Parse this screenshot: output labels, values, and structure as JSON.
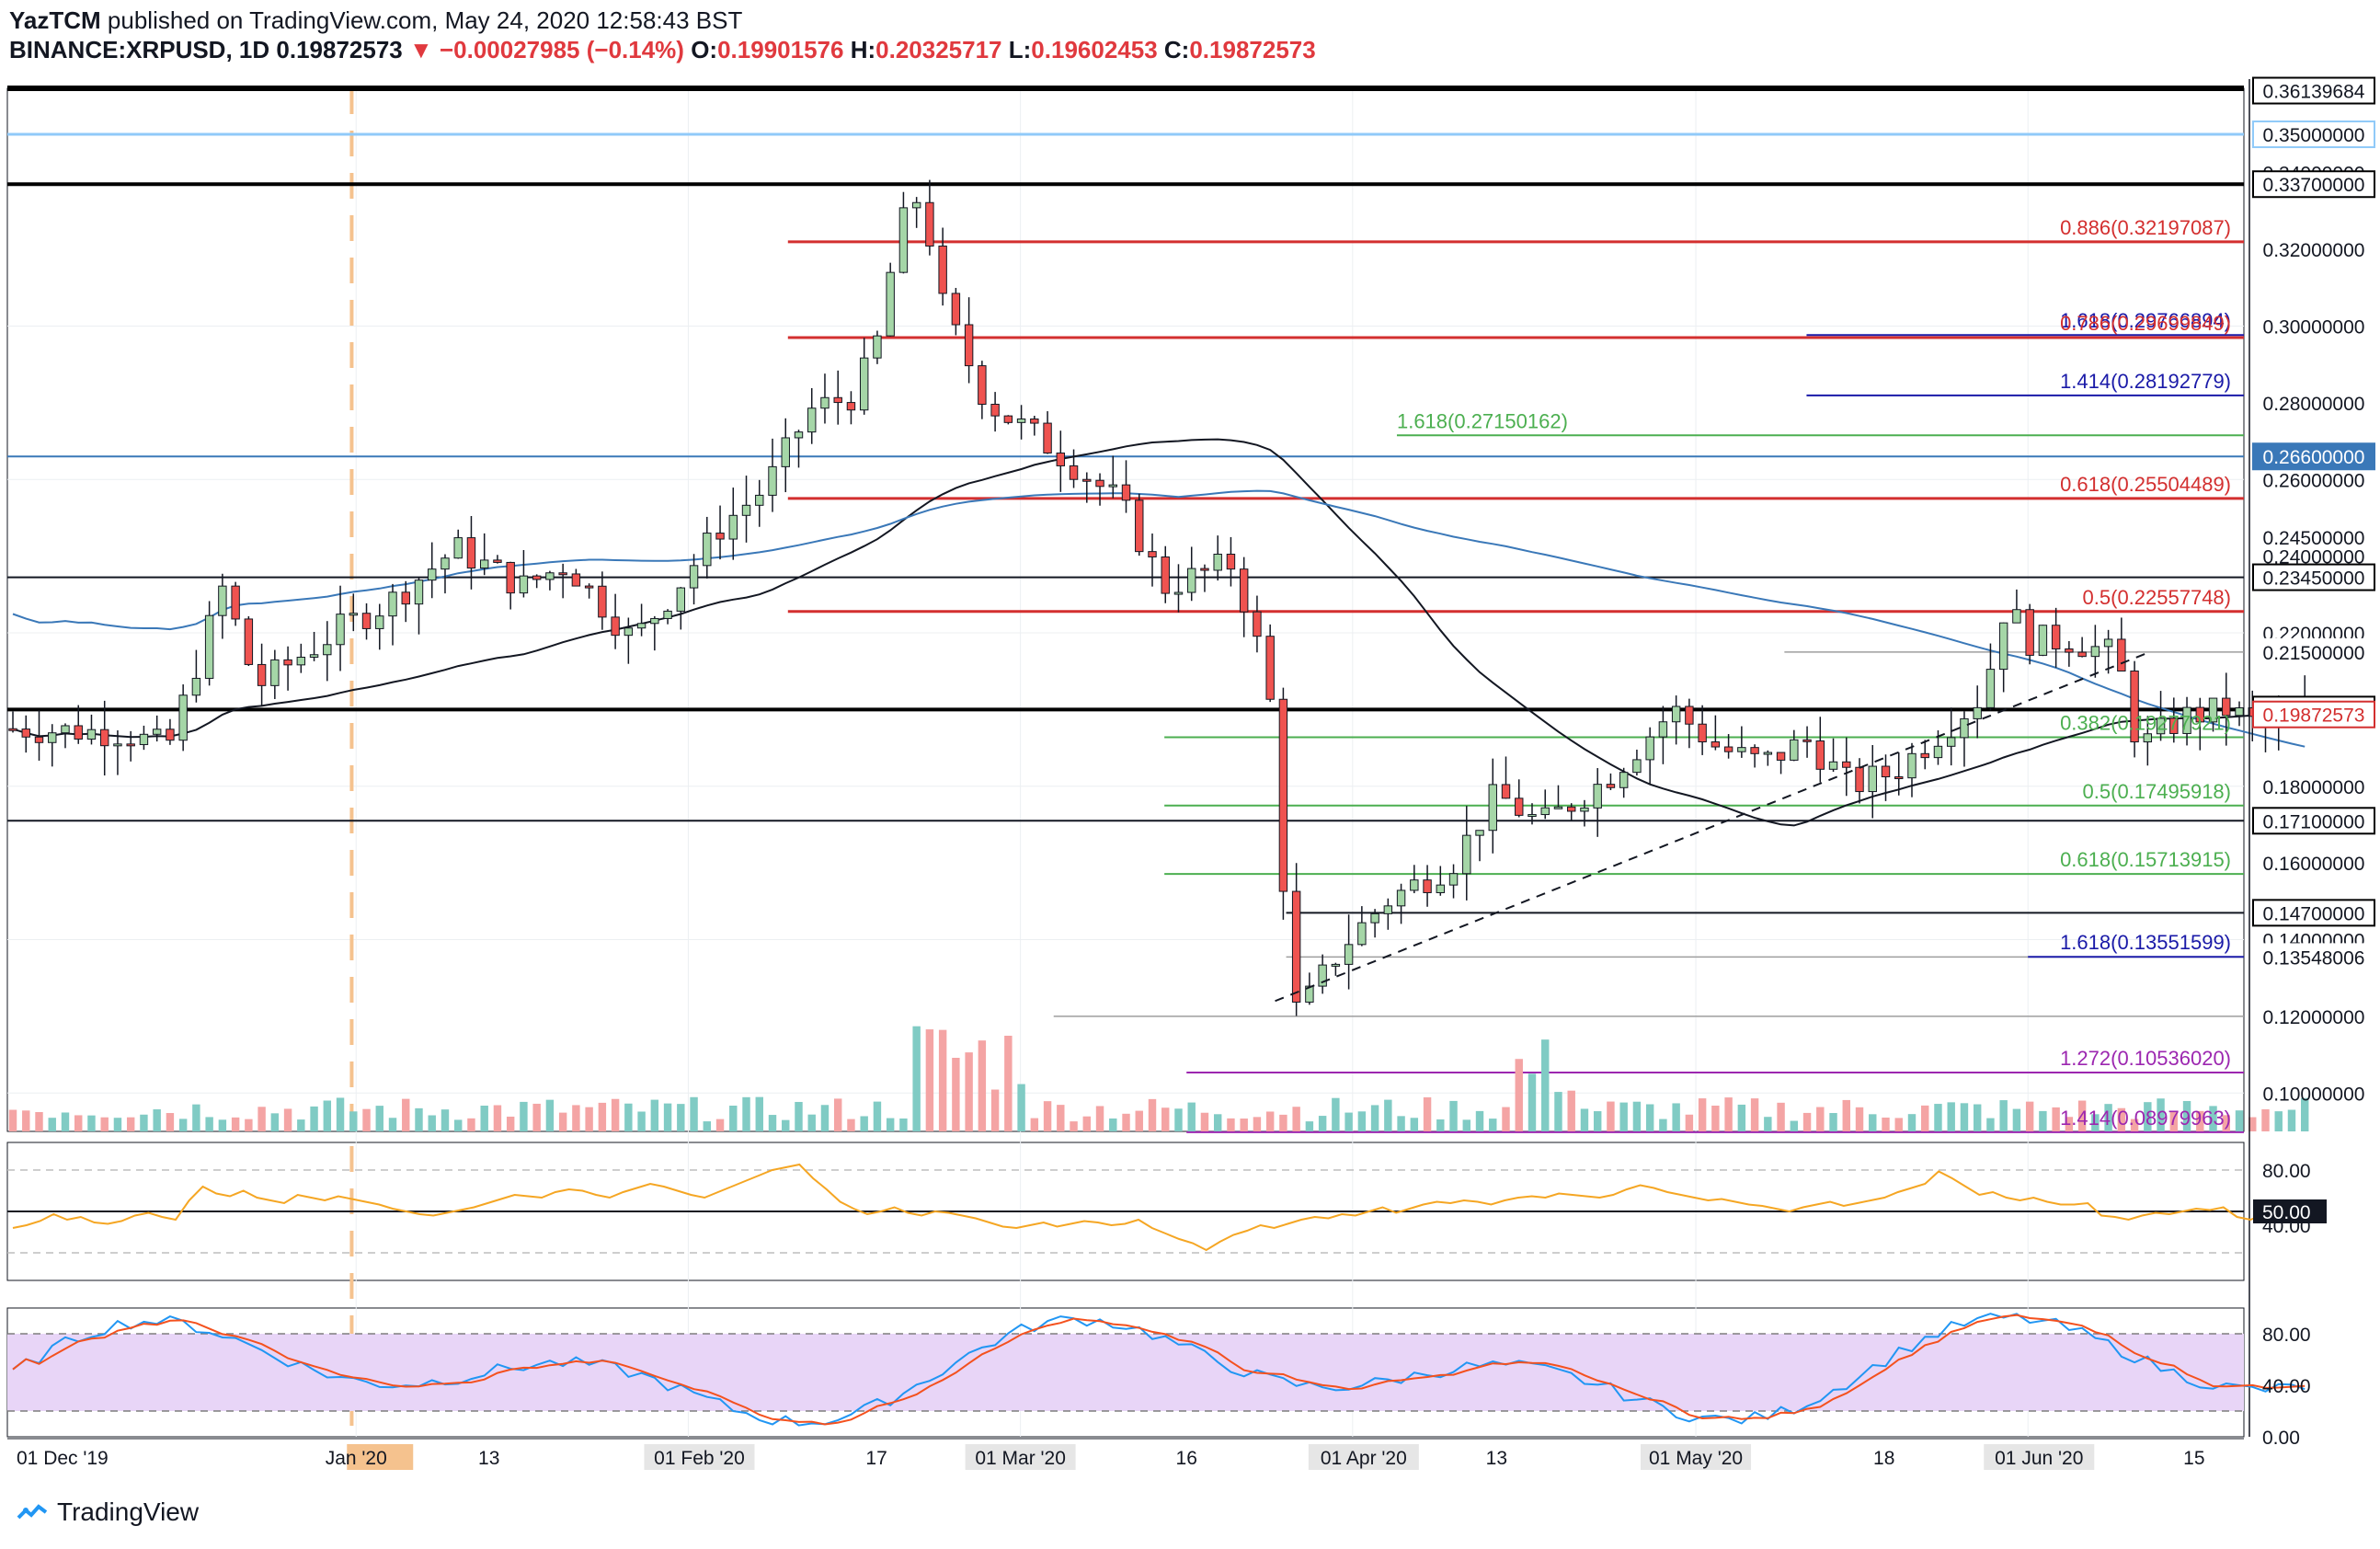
{
  "header": {
    "author": "YazTCM",
    "published_text": "published on TradingView.com, May 24, 2020 12:58:43 BST",
    "symbol": "BINANCE:XRPUSD, 1D",
    "last": "0.19872573",
    "arrow": "▼",
    "change": "−0.00027985 (−0.14%)",
    "o_label": "O:",
    "o": "0.19901576",
    "h_label": "H:",
    "h": "0.20325717",
    "l_label": "L:",
    "l": "0.19602453",
    "c_label": "C:",
    "c": "0.19872573"
  },
  "footer": {
    "brand": "TradingView"
  },
  "colors": {
    "up": "#3d9970",
    "down": "#d9434a",
    "body_up": "#a5d6a7",
    "body_down": "#ef5350",
    "vol_up": "#80cbc4",
    "vol_down": "#f4a4a4",
    "red_fib": "#d32f2f",
    "green_fib": "#4caf50",
    "blue_fib": "#1a1aa8",
    "purple_fib": "#9c27b0",
    "ma200": "#3a78b8",
    "ma100": "#131722",
    "rsi": "#f5a623",
    "stoch_k": "#2196f3",
    "stoch_d": "#f4511e",
    "stoch_band": "#e8d5f7"
  },
  "chart_data": {
    "type": "candlestick",
    "price_axis_min": 0.09,
    "price_axis_max": 0.362,
    "x_start": "2019-12-01",
    "x_end": "2020-06-20",
    "x_ticks": [
      "01 Dec '19",
      "Jan '20",
      "13",
      "01 Feb '20",
      "17",
      "01 Mar '20",
      "16",
      "01 Apr '20",
      "13",
      "01 May '20",
      "18",
      "01 Jun '20",
      "15"
    ],
    "price_ticks": [
      "0.36139684",
      "0.35000000",
      "0.34000000",
      "0.33700000",
      "0.32000000",
      "0.30000000",
      "0.28000000",
      "0.26600000",
      "0.26000000",
      "0.24500000",
      "0.24000000",
      "0.23450000",
      "0.22000000",
      "0.21500000",
      "0.20000000",
      "0.18000000",
      "0.17100000",
      "0.16000000",
      "0.14700000",
      "0.14000000",
      "0.13548006",
      "0.12000000",
      "0.10000000"
    ],
    "current_price": "0.19872573",
    "horizontal_levels": [
      {
        "price": 0.337,
        "kind": "black_thick"
      },
      {
        "price": 0.35,
        "kind": "light_blue"
      },
      {
        "price": 0.2345,
        "kind": "black"
      },
      {
        "price": 0.215,
        "kind": "gray"
      },
      {
        "price": 0.2,
        "kind": "black_thick"
      },
      {
        "price": 0.171,
        "kind": "black"
      },
      {
        "price": 0.147,
        "kind": "black"
      },
      {
        "price": 0.13548,
        "kind": "gray"
      },
      {
        "price": 0.12,
        "kind": "gray"
      },
      {
        "price": 0.266,
        "kind": "blue"
      }
    ],
    "fib_levels": [
      {
        "label": "0.886(0.32197087)",
        "price": 0.32197087,
        "color": "red"
      },
      {
        "label": "1.618(0.29766894)",
        "price": 0.29766894,
        "color": "blue"
      },
      {
        "label": "0.786(0.29699849)",
        "price": 0.29699849,
        "color": "red"
      },
      {
        "label": "1.414(0.28192779)",
        "price": 0.28192779,
        "color": "blue"
      },
      {
        "label": "1.618(0.27150162)",
        "price": 0.27150162,
        "color": "green"
      },
      {
        "label": "0.618(0.25504489)",
        "price": 0.25504489,
        "color": "red"
      },
      {
        "label": "0.5(0.22557748)",
        "price": 0.22557748,
        "color": "red"
      },
      {
        "label": "0.382(0.19277921)",
        "price": 0.19277921,
        "color": "green"
      },
      {
        "label": "0.5(0.17495918)",
        "price": 0.17495918,
        "color": "green"
      },
      {
        "label": "0.618(0.15713915)",
        "price": 0.15713915,
        "color": "green"
      },
      {
        "label": "1.618(0.13551599)",
        "price": 0.13551599,
        "color": "blue"
      },
      {
        "label": "1.272(0.10536020)",
        "price": 0.1053602,
        "color": "purple"
      },
      {
        "label": "1.414(0.08979963)",
        "price": 0.08979963,
        "color": "purple"
      }
    ],
    "rsi": {
      "ticks": [
        "80.00",
        "50.00",
        "40.00"
      ],
      "values": [
        38,
        40,
        43,
        48,
        44,
        46,
        42,
        41,
        43,
        47,
        49,
        46,
        44,
        58,
        68,
        63,
        61,
        65,
        60,
        58,
        56,
        62,
        60,
        58,
        61,
        59,
        57,
        55,
        52,
        50,
        48,
        47,
        49,
        51,
        53,
        56,
        59,
        62,
        61,
        60,
        64,
        66,
        65,
        62,
        60,
        64,
        67,
        70,
        68,
        65,
        62,
        60,
        64,
        68,
        72,
        76,
        80,
        82,
        84,
        74,
        66,
        57,
        52,
        48,
        50,
        53,
        49,
        47,
        50,
        49,
        47,
        45,
        42,
        39,
        38,
        40,
        42,
        39,
        41,
        43,
        42,
        40,
        41,
        44,
        38,
        34,
        30,
        27,
        22,
        28,
        33,
        36,
        40,
        38,
        41,
        44,
        46,
        45,
        48,
        47,
        50,
        53,
        49,
        52,
        55,
        57,
        56,
        58,
        57,
        55,
        58,
        60,
        61,
        60,
        63,
        62,
        61,
        60,
        62,
        66,
        69,
        67,
        64,
        62,
        60,
        58,
        59,
        57,
        55,
        54,
        52,
        50,
        53,
        55,
        57,
        54,
        56,
        58,
        60,
        64,
        67,
        70,
        79,
        74,
        68,
        62,
        64,
        60,
        58,
        60,
        57,
        55,
        55,
        56,
        47,
        46,
        44,
        47,
        49,
        48,
        50,
        52,
        51,
        53,
        46,
        44,
        48,
        45,
        46,
        45
      ],
      "start_date": "2019-12-01"
    },
    "stoch_rsi": {
      "ticks": [
        "80.00",
        "40.00",
        "0.00"
      ]
    }
  }
}
